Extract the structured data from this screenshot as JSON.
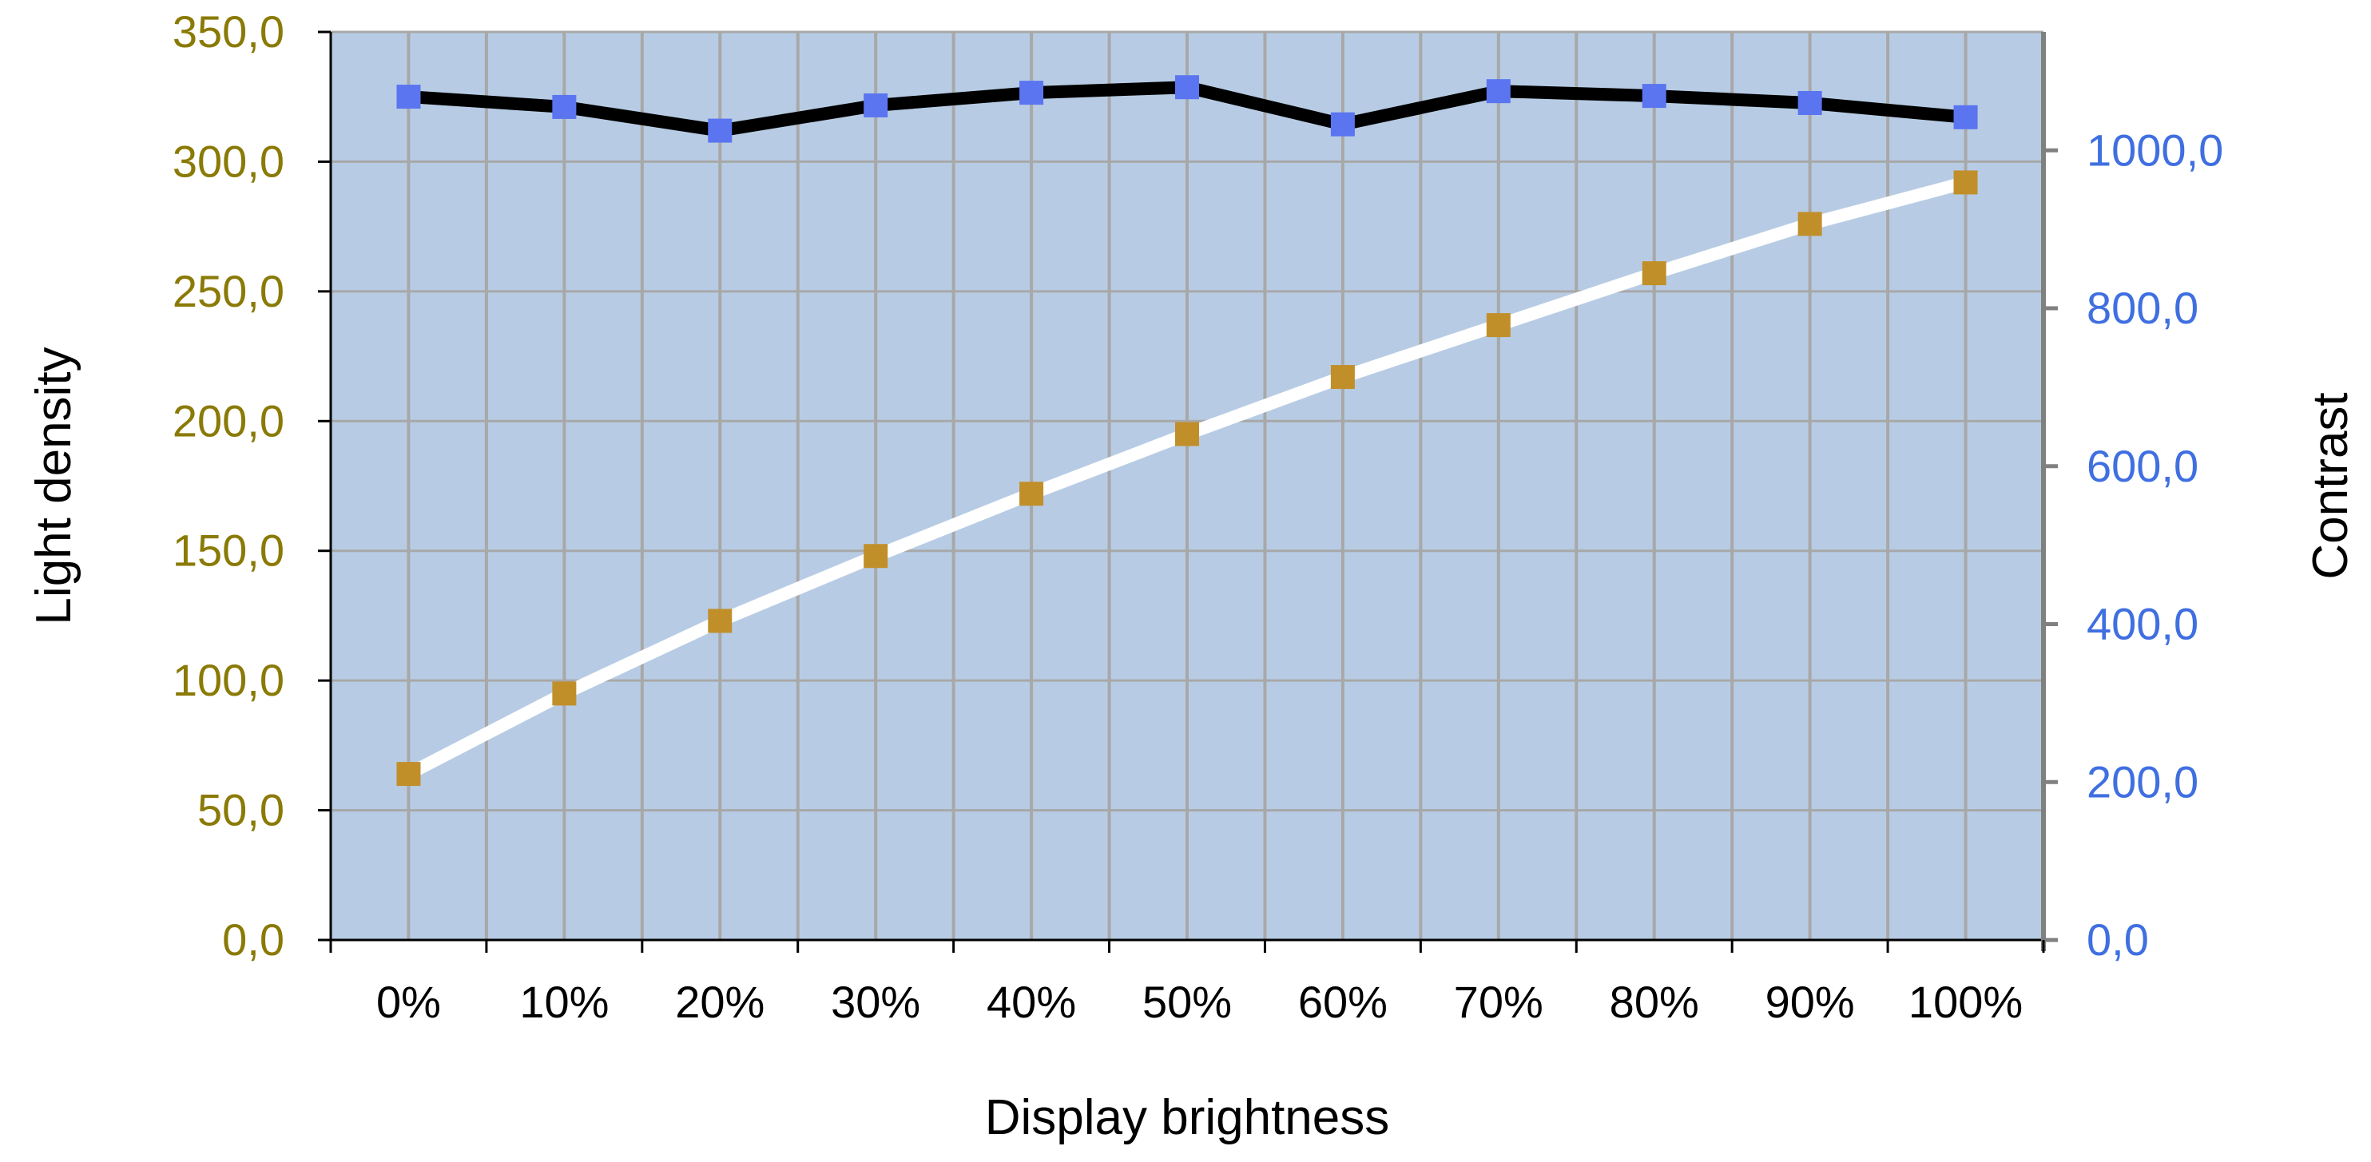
{
  "chart_data": {
    "type": "line",
    "title": "",
    "xlabel": "Display brightness",
    "ylabel_left": "Light density",
    "ylabel_right": "Contrast",
    "categories": [
      "0%",
      "10%",
      "20%",
      "30%",
      "40%",
      "50%",
      "60%",
      "70%",
      "80%",
      "90%",
      "100%"
    ],
    "ylim_left": [
      0,
      350
    ],
    "yticks_left": [
      "0,0",
      "50,0",
      "100,0",
      "150,0",
      "200,0",
      "250,0",
      "300,0",
      "350,0"
    ],
    "ylim_right": [
      0,
      1150
    ],
    "yticks_right": [
      "0,0",
      "200,0",
      "400,0",
      "600,0",
      "800,0",
      "1000,0"
    ],
    "grid": {
      "vertical": true,
      "horizontal": true
    },
    "legend": "none",
    "series": [
      {
        "axis": "left",
        "line_color": "#ffffff",
        "marker_color": "#c18f2a",
        "values": [
          64,
          95,
          123,
          148,
          172,
          195,
          217,
          237,
          257,
          276,
          292
        ]
      },
      {
        "axis": "right",
        "line_color": "#000000",
        "marker_color": "#5b74f0",
        "values": [
          1068,
          1055,
          1025,
          1057,
          1073,
          1080,
          1033,
          1075,
          1069,
          1060,
          1042
        ]
      }
    ],
    "colors": {
      "plot_background": "#b7cce4",
      "grid": "#a8a8a8",
      "left_axis_text": "#8a7a06",
      "right_axis_text": "#3f6fe0"
    }
  }
}
